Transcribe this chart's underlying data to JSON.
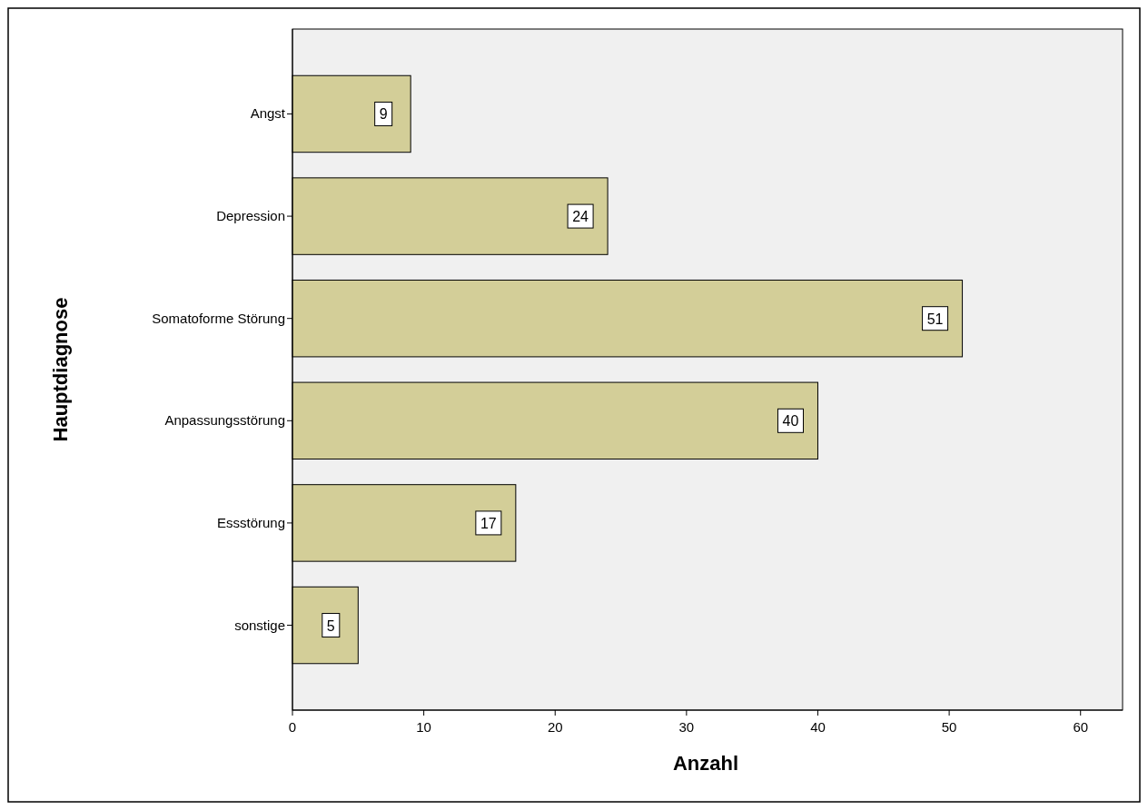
{
  "chart_data": {
    "type": "bar",
    "orientation": "horizontal",
    "xlabel": "Anzahl",
    "ylabel": "Hauptdiagnose",
    "categories": [
      "Angst",
      "Depression",
      "Somatoforme Störung",
      "Anpassungsstörung",
      "Essstörung",
      "sonstige"
    ],
    "values": [
      9,
      24,
      51,
      40,
      17,
      5
    ],
    "color": "#d3ce98",
    "xlim": [
      0,
      63.2
    ],
    "xticks": [
      0,
      10,
      20,
      30,
      40,
      50,
      60
    ],
    "data_labels": true
  }
}
